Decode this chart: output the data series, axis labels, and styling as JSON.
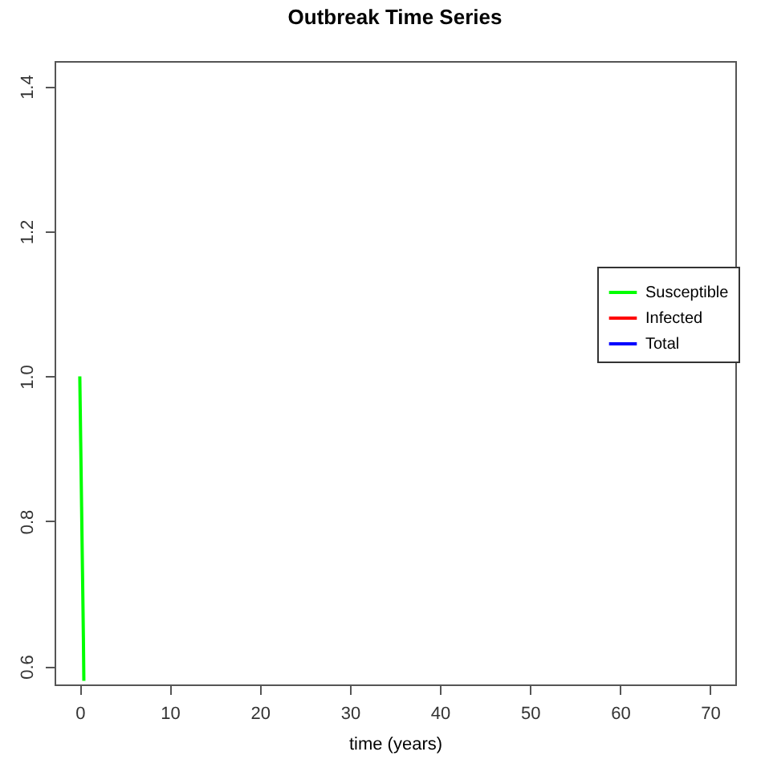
{
  "chart_data": {
    "type": "line",
    "title": "Outbreak Time Series",
    "xlabel": "time (years)",
    "x": [
      0,
      0.1,
      0.2,
      0.3,
      0.4,
      0.45
    ],
    "series": [
      {
        "name": "Susceptible",
        "color": "#00ff00",
        "values": [
          1.0,
          0.91,
          0.82,
          0.73,
          0.64,
          0.58
        ]
      },
      {
        "name": "Infected",
        "color": "#ff0000",
        "values": [
          null,
          null,
          null,
          null,
          null,
          null
        ]
      },
      {
        "name": "Total",
        "color": "#0000ff",
        "values": [
          null,
          null,
          null,
          null,
          null,
          null
        ]
      }
    ],
    "xlim": [
      -2.8,
      72.8
    ],
    "xticks": [
      0,
      10,
      20,
      30,
      40,
      50,
      60,
      70
    ],
    "ylim": [
      0.575,
      1.435
    ],
    "yticks": [
      0.6,
      0.8,
      {
        "value": 1,
        "label": "1.0"
      },
      1.2,
      1.4
    ],
    "grid": false,
    "legend": "right",
    "marker": "none",
    "line_style": "solid"
  }
}
